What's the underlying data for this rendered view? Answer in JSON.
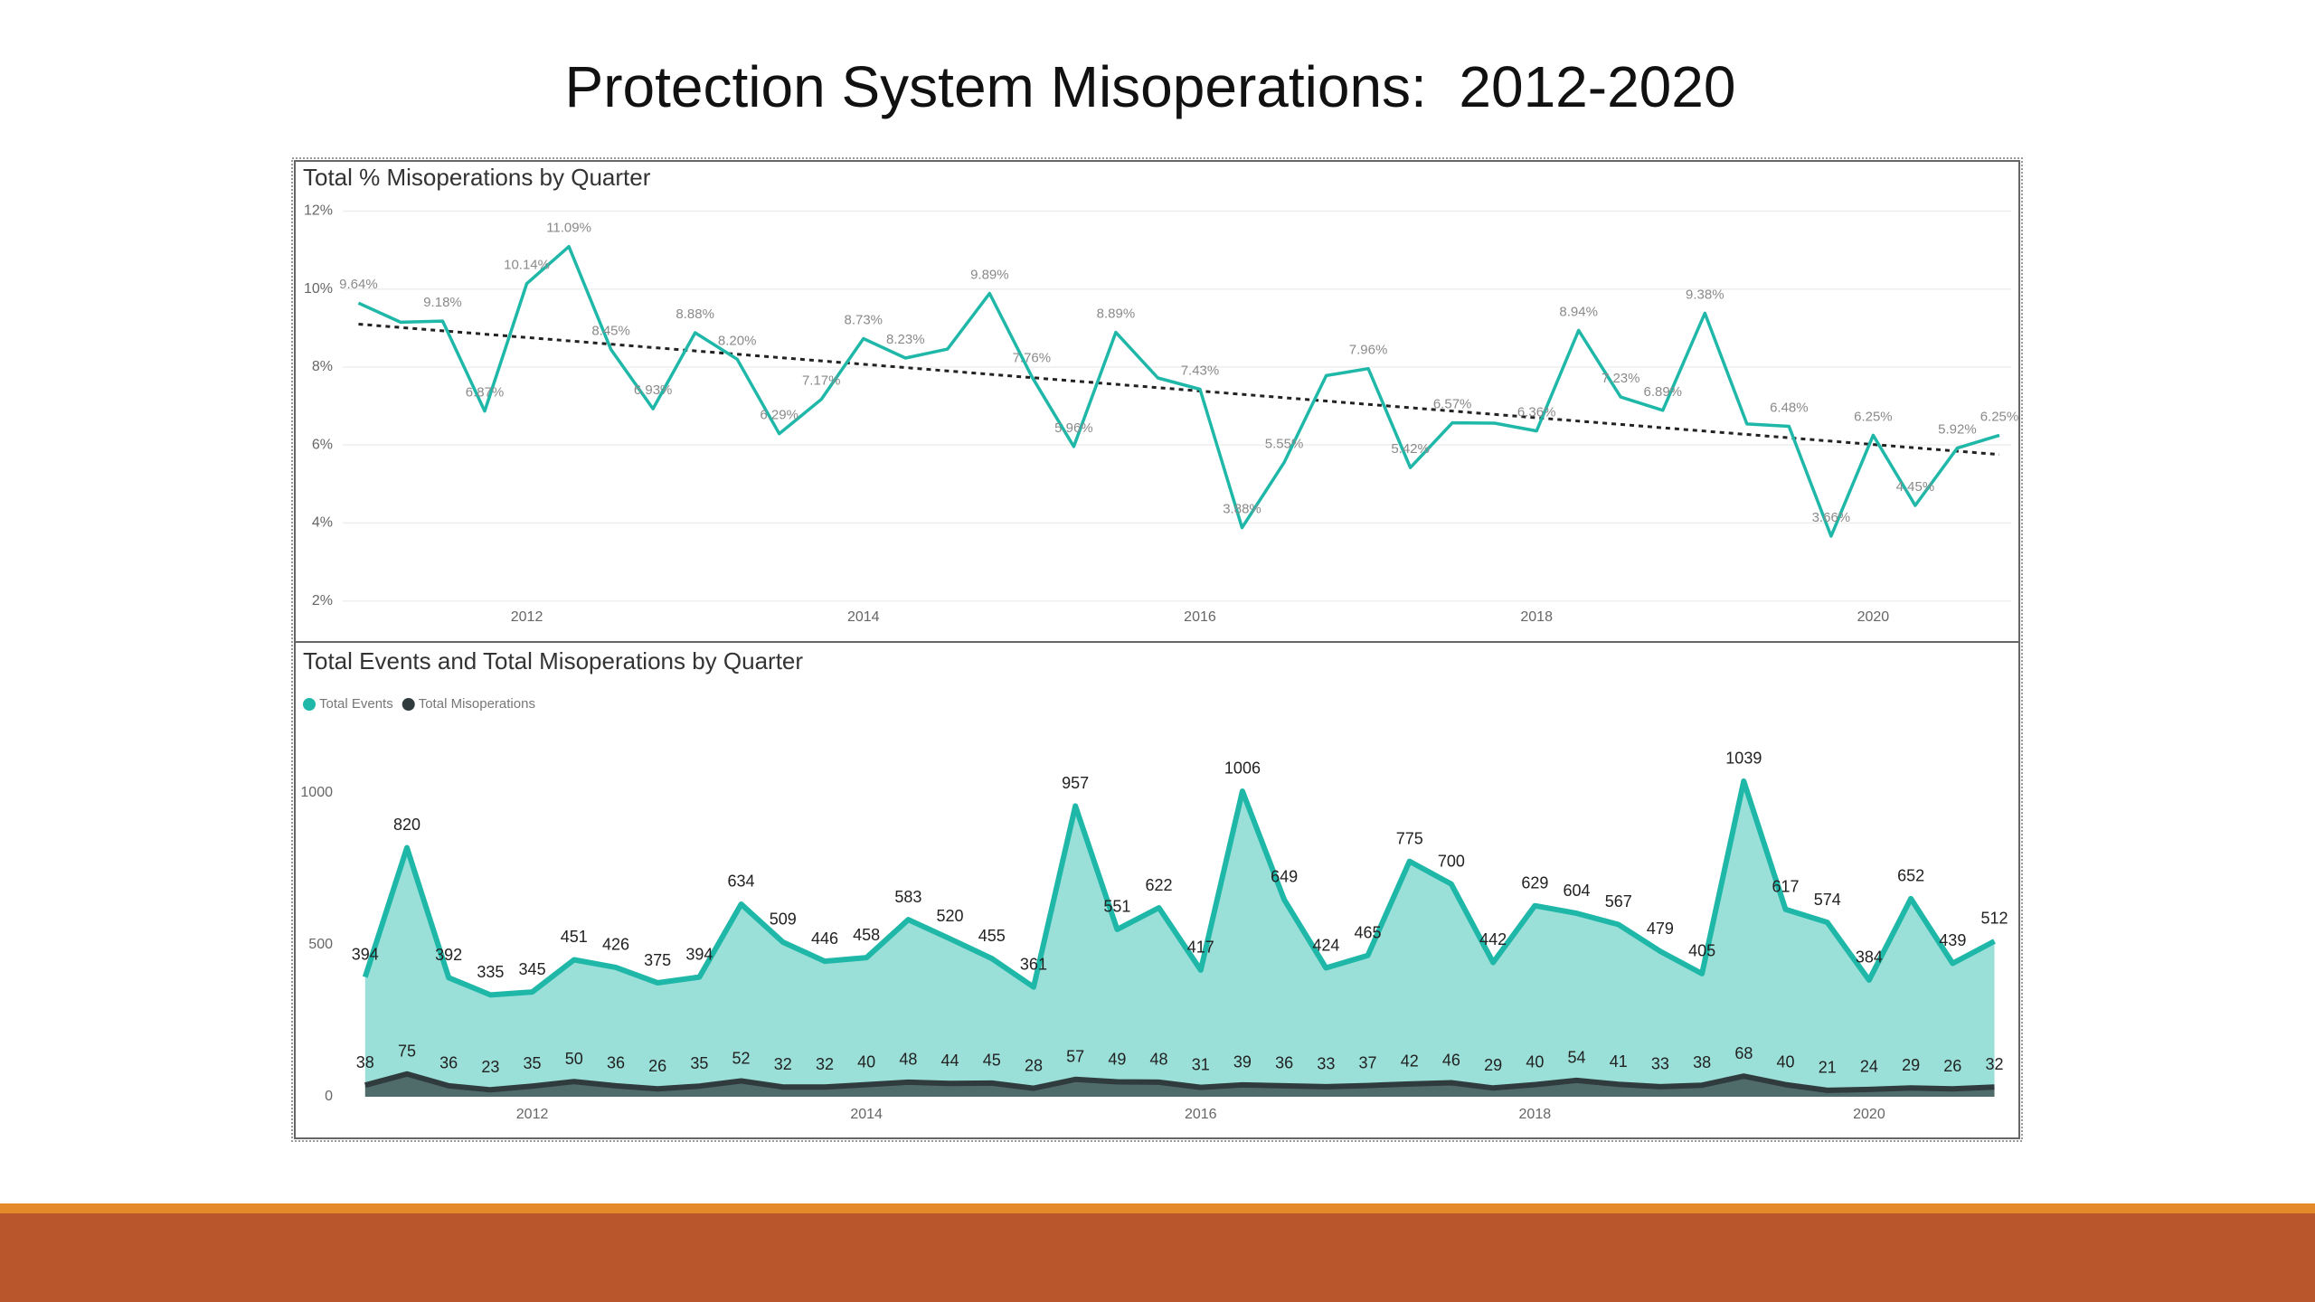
{
  "title": "Protection System Misoperations:  2012-2020",
  "chart_data": [
    {
      "type": "line",
      "title": "Total % Misoperations by Quarter",
      "x": [
        2011,
        2011.25,
        2011.5,
        2011.75,
        2012,
        2012.25,
        2012.5,
        2012.75,
        2013,
        2013.25,
        2013.5,
        2013.75,
        2014,
        2014.25,
        2014.5,
        2014.75,
        2015,
        2015.25,
        2015.5,
        2015.75,
        2016,
        2016.25,
        2016.5,
        2016.75,
        2017,
        2017.25,
        2017.5,
        2017.75,
        2018,
        2018.25,
        2018.5,
        2018.75,
        2019,
        2019.25,
        2019.5,
        2019.75,
        2020,
        2020.25,
        2020.5,
        2020.75
      ],
      "values": [
        9.64,
        9.15,
        9.18,
        6.87,
        10.14,
        11.09,
        8.45,
        6.93,
        8.88,
        8.2,
        6.29,
        7.17,
        8.73,
        8.23,
        8.46,
        9.89,
        7.76,
        5.96,
        8.89,
        7.72,
        7.43,
        3.88,
        5.55,
        7.78,
        7.96,
        5.42,
        6.57,
        6.56,
        6.36,
        8.94,
        7.23,
        6.89,
        9.38,
        6.54,
        6.48,
        3.66,
        6.25,
        4.45,
        5.92,
        6.25
      ],
      "value_labels": [
        "9.64%",
        null,
        "9.18%",
        "6.87%",
        "10.14%",
        "11.09%",
        "8.45%",
        "6.93%",
        "8.88%",
        "8.20%",
        "6.29%",
        "7.17%",
        "8.73%",
        "8.23%",
        null,
        "9.89%",
        "7.76%",
        "5.96%",
        "8.89%",
        null,
        "7.43%",
        "3.88%",
        "5.55%",
        null,
        "7.96%",
        "5.42%",
        "6.57%",
        null,
        "6.36%",
        "8.94%",
        "7.23%",
        "6.89%",
        "9.38%",
        null,
        "6.48%",
        "3.66%",
        "6.25%",
        "4.45%",
        "5.92%",
        "6.25%"
      ],
      "color": "#1fb8a8",
      "trendline": true,
      "xlim": [
        2010.96,
        2020.82
      ],
      "xticks": [
        2012,
        2014,
        2016,
        2018,
        2020
      ],
      "ylim": [
        2,
        12
      ],
      "yticks": [
        {
          "value": 2,
          "label": "2%"
        },
        {
          "value": 4,
          "label": "4%"
        },
        {
          "value": 6,
          "label": "6%"
        },
        {
          "value": 8,
          "label": "8%"
        },
        {
          "value": 10,
          "label": "10%"
        },
        {
          "value": 12,
          "label": "12%"
        }
      ],
      "grid": true
    },
    {
      "type": "area",
      "title": "Total Events and Total Misoperations by Quarter",
      "x": [
        2011,
        2011.25,
        2011.5,
        2011.75,
        2012,
        2012.25,
        2012.5,
        2012.75,
        2013,
        2013.25,
        2013.5,
        2013.75,
        2014,
        2014.25,
        2014.5,
        2014.75,
        2015,
        2015.25,
        2015.5,
        2015.75,
        2016,
        2016.25,
        2016.5,
        2016.75,
        2017,
        2017.25,
        2017.5,
        2017.75,
        2018,
        2018.25,
        2018.5,
        2018.75,
        2019,
        2019.25,
        2019.5,
        2019.75,
        2020,
        2020.25,
        2020.5,
        2020.75
      ],
      "series": [
        {
          "name": "Total Events",
          "color": "#1fb8a8",
          "values": [
            394,
            820,
            392,
            335,
            345,
            451,
            426,
            375,
            394,
            634,
            509,
            446,
            458,
            583,
            520,
            455,
            361,
            957,
            551,
            622,
            417,
            1006,
            649,
            424,
            465,
            775,
            700,
            442,
            629,
            604,
            567,
            479,
            405,
            1039,
            617,
            574,
            384,
            652,
            439,
            512
          ]
        },
        {
          "name": "Total Misoperations",
          "color": "#2f3b3d",
          "values": [
            38,
            75,
            36,
            23,
            35,
            50,
            36,
            26,
            35,
            52,
            32,
            32,
            40,
            48,
            44,
            45,
            28,
            57,
            49,
            48,
            31,
            39,
            36,
            33,
            37,
            42,
            46,
            29,
            40,
            54,
            41,
            33,
            38,
            68,
            40,
            21,
            24,
            29,
            26,
            32
          ]
        }
      ],
      "legend": "top-left",
      "xlim": [
        2010.92,
        2020.85
      ],
      "xticks": [
        2012,
        2014,
        2016,
        2018,
        2020
      ],
      "ylim": [
        0,
        1200
      ],
      "yticks": [
        0,
        500,
        1000
      ],
      "grid": false
    }
  ]
}
